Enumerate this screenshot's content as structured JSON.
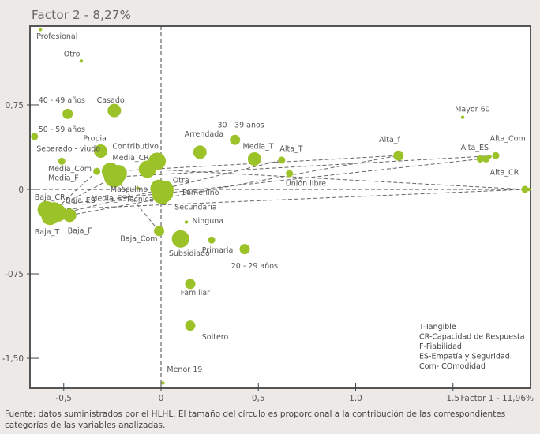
{
  "chart_data": {
    "type": "scatter",
    "title": "Factor 2 - 8,27%",
    "xlabel": "Factor 1 - 11,96%",
    "ylabel": "Factor 2 - 8,27%",
    "xlim": [
      -0.67,
      1.91
    ],
    "ylim": [
      -1.76,
      1.45
    ],
    "xticks": [
      {
        "v": -0.5,
        "label": "-0,5"
      },
      {
        "v": 0,
        "label": "0"
      },
      {
        "v": 0.5,
        "label": "0,5"
      },
      {
        "v": 1.0,
        "label": "1.0"
      },
      {
        "v": 1.5,
        "label": "1.5"
      }
    ],
    "yticks": [
      {
        "v": 0.75,
        "label": "0,75"
      },
      {
        "v": 0,
        "label": "0"
      },
      {
        "v": -0.75,
        "label": "-075"
      },
      {
        "v": -1.5,
        "label": "-1,50"
      }
    ],
    "grid": false,
    "bubble_color": "#9cc22a",
    "points": [
      {
        "label": "Profesional",
        "x": -0.62,
        "y": 1.42,
        "size": 1,
        "lx": -0.64,
        "ly": 1.34,
        "anchor": "start"
      },
      {
        "label": "Otro",
        "x": -0.41,
        "y": 1.14,
        "size": 1,
        "lx": -0.5,
        "ly": 1.18,
        "anchor": "start"
      },
      {
        "label": "40 - 49 años",
        "x": -0.48,
        "y": 0.67,
        "size": 3,
        "lx": -0.63,
        "ly": 0.77,
        "anchor": "start"
      },
      {
        "label": "Casado",
        "x": -0.24,
        "y": 0.7,
        "size": 4,
        "lx": -0.33,
        "ly": 0.77,
        "anchor": "start"
      },
      {
        "label": "50 - 59 años",
        "x": -0.65,
        "y": 0.47,
        "size": 2,
        "lx": -0.63,
        "ly": 0.51,
        "anchor": "start"
      },
      {
        "label": "Propia",
        "x": -0.31,
        "y": 0.34,
        "size": 4,
        "lx": -0.4,
        "ly": 0.43,
        "anchor": "start"
      },
      {
        "label": "Separado - viudo",
        "x": -0.51,
        "y": 0.25,
        "size": 2,
        "lx": -0.64,
        "ly": 0.34,
        "anchor": "start"
      },
      {
        "label": "Contributivo",
        "x": -0.02,
        "y": 0.25,
        "size": 5,
        "lx": -0.25,
        "ly": 0.36,
        "anchor": "start"
      },
      {
        "label": "Media_CR",
        "x": -0.07,
        "y": 0.18,
        "size": 5,
        "lx": -0.25,
        "ly": 0.26,
        "anchor": "start"
      },
      {
        "label": "Media_Com",
        "x": -0.33,
        "y": 0.16,
        "size": 2,
        "lx": -0.58,
        "ly": 0.16,
        "anchor": "start"
      },
      {
        "label": "Media_F",
        "x": -0.26,
        "y": 0.16,
        "size": 5,
        "lx": -0.58,
        "ly": 0.08,
        "anchor": "start"
      },
      {
        "label": "Masculino",
        "x": -0.24,
        "y": 0.11,
        "size": 6,
        "lx": -0.26,
        "ly": -0.02,
        "anchor": "start"
      },
      {
        "label": "Arrendada",
        "x": 0.2,
        "y": 0.33,
        "size": 4,
        "lx": 0.12,
        "ly": 0.47,
        "anchor": "start"
      },
      {
        "label": "30 - 39 años",
        "x": 0.38,
        "y": 0.44,
        "size": 3,
        "lx": 0.29,
        "ly": 0.55,
        "anchor": "start"
      },
      {
        "label": "Media_T",
        "x": 0.48,
        "y": 0.27,
        "size": 4,
        "lx": 0.42,
        "ly": 0.36,
        "anchor": "start"
      },
      {
        "label": "Alta_T",
        "x": 0.62,
        "y": 0.26,
        "size": 2,
        "lx": 0.61,
        "ly": 0.34,
        "anchor": "start"
      },
      {
        "label": "Unión libre",
        "x": 0.66,
        "y": 0.14,
        "size": 2,
        "lx": 0.64,
        "ly": 0.03,
        "anchor": "start"
      },
      {
        "label": "Otra",
        "x": -0.01,
        "y": 0.01,
        "size": 5,
        "lx": 0.06,
        "ly": 0.06,
        "anchor": "start"
      },
      {
        "label": "Técnica",
        "x": 0.01,
        "y": -0.03,
        "size": 6,
        "lx": -0.18,
        "ly": -0.11,
        "anchor": "start"
      },
      {
        "label": "Femenino",
        "x": 0.0,
        "y": -0.05,
        "size": 5,
        "lx": 0.11,
        "ly": -0.05,
        "anchor": "start"
      },
      {
        "label": "Secundaria",
        "x": 0.01,
        "y": -0.09,
        "size": 3,
        "lx": 0.07,
        "ly": -0.18,
        "anchor": "start"
      },
      {
        "label": "Media_ES",
        "x": -0.12,
        "y": 0.01,
        "size": 1,
        "lx": -0.36,
        "ly": -0.1,
        "anchor": "start"
      },
      {
        "label": "Baja_CR",
        "x": -0.59,
        "y": -0.18,
        "size": 5,
        "lx": -0.65,
        "ly": -0.09,
        "anchor": "start"
      },
      {
        "label": "Baja_ES",
        "x": -0.55,
        "y": -0.19,
        "size": 5,
        "lx": -0.49,
        "ly": -0.12,
        "anchor": "start"
      },
      {
        "label": "Baja_T",
        "x": -0.57,
        "y": -0.24,
        "size": 5,
        "lx": -0.65,
        "ly": -0.4,
        "anchor": "start"
      },
      {
        "label": "Baja_F",
        "x": -0.47,
        "y": -0.23,
        "size": 4,
        "lx": -0.48,
        "ly": -0.39,
        "anchor": "start"
      },
      {
        "label": "Ninguna",
        "x": 0.13,
        "y": -0.29,
        "size": 1,
        "lx": 0.16,
        "ly": -0.3,
        "anchor": "start"
      },
      {
        "label": "Baja_Com",
        "x": -0.01,
        "y": -0.37,
        "size": 3,
        "lx": -0.21,
        "ly": -0.46,
        "anchor": "start"
      },
      {
        "label": "Subsidiado",
        "x": 0.1,
        "y": -0.44,
        "size": 5,
        "lx": 0.04,
        "ly": -0.59,
        "anchor": "start"
      },
      {
        "label": "Primaria",
        "x": 0.26,
        "y": -0.45,
        "size": 2,
        "lx": 0.21,
        "ly": -0.56,
        "anchor": "start"
      },
      {
        "label": "20 - 29 años",
        "x": 0.43,
        "y": -0.53,
        "size": 3,
        "lx": 0.36,
        "ly": -0.7,
        "anchor": "start"
      },
      {
        "label": "Familiar",
        "x": 0.15,
        "y": -0.84,
        "size": 3,
        "lx": 0.1,
        "ly": -0.94,
        "anchor": "start"
      },
      {
        "label": "Soltero",
        "x": 0.15,
        "y": -1.21,
        "size": 3,
        "lx": 0.21,
        "ly": -1.33,
        "anchor": "start"
      },
      {
        "label": "Menor 19",
        "x": 0.01,
        "y": -1.72,
        "size": 1,
        "lx": 0.03,
        "ly": -1.62,
        "anchor": "start"
      },
      {
        "label": "Mayor 60",
        "x": 1.55,
        "y": 0.64,
        "size": 1,
        "lx": 1.51,
        "ly": 0.69,
        "anchor": "start"
      },
      {
        "label": "Alta_f",
        "x": 1.22,
        "y": 0.3,
        "size": 3,
        "lx": 1.12,
        "ly": 0.42,
        "anchor": "start"
      },
      {
        "label": "Alta_ES",
        "x": 1.64,
        "y": 0.27,
        "size": 2,
        "lx": 1.54,
        "ly": 0.35,
        "anchor": "start"
      },
      {
        "label": "Alta_Com",
        "x": 1.72,
        "y": 0.3,
        "size": 2,
        "lx": 1.69,
        "ly": 0.43,
        "anchor": "start"
      },
      {
        "label": "Alta_CR",
        "x": 1.87,
        "y": 0.0,
        "size": 2,
        "lx": 1.69,
        "ly": 0.13,
        "anchor": "start"
      }
    ],
    "extra_points": [
      {
        "x": 1.67,
        "y": 0.27,
        "size": 2
      },
      {
        "x": 1.69,
        "y": 0.29,
        "size": 1
      },
      {
        "x": 1.89,
        "y": 0.0,
        "size": 1
      },
      {
        "x": -0.22,
        "y": 0.14,
        "size": 5
      },
      {
        "x": -0.53,
        "y": -0.21,
        "size": 5
      },
      {
        "x": 0.02,
        "y": 0.0,
        "size": 5
      }
    ],
    "dashed_links": [
      [
        [
          -0.58,
          -0.18
        ],
        [
          1.87,
          0.0
        ]
      ],
      [
        [
          -0.55,
          -0.14
        ],
        [
          1.64,
          0.27
        ]
      ],
      [
        [
          -0.47,
          -0.23
        ],
        [
          1.22,
          0.3
        ]
      ],
      [
        [
          -0.57,
          -0.24
        ],
        [
          0.62,
          0.26
        ]
      ],
      [
        [
          -0.01,
          -0.37
        ],
        [
          -0.24,
          0.11
        ]
      ],
      [
        [
          -0.07,
          0.18
        ],
        [
          1.87,
          0.0
        ]
      ],
      [
        [
          -0.24,
          0.11
        ],
        [
          1.72,
          0.3
        ]
      ],
      [
        [
          -0.26,
          0.16
        ],
        [
          1.22,
          0.3
        ]
      ],
      [
        [
          -0.33,
          0.16
        ],
        [
          -0.55,
          -0.19
        ]
      ],
      [
        [
          -0.24,
          0.11
        ],
        [
          -0.47,
          -0.1
        ]
      ]
    ],
    "legend_notes": [
      "T-Tangible",
      "CR-Capacidad de Respuesta",
      "F-Fiabilidad",
      "ES-Empatía y Seguridad",
      "Com- COmodidad"
    ]
  },
  "caption": "Fuente: datos suministrados por el HLHL. El tamaño del círculo es proporcional a la contribución de las correspondientes categorías de las variables analizadas."
}
